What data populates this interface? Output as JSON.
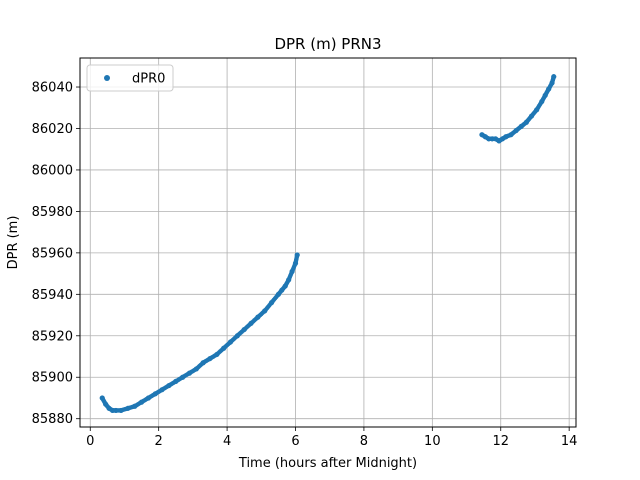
{
  "chart_data": {
    "type": "scatter",
    "title": "DPR (m) PRN3",
    "xlabel": "Time (hours after Midnight)",
    "ylabel": "DPR (m)",
    "xlim": [
      -0.3,
      14.2
    ],
    "ylim": [
      85876,
      86054
    ],
    "xticks": [
      0,
      2,
      4,
      6,
      8,
      10,
      12,
      14
    ],
    "yticks": [
      85880,
      85900,
      85920,
      85940,
      85960,
      85980,
      86000,
      86020,
      86040
    ],
    "grid": true,
    "legend_position": "top-left",
    "series": [
      {
        "name": "dPR0",
        "color": "#1f77b4",
        "segments": [
          {
            "x": [
              0.35,
              0.45,
              0.55,
              0.65,
              0.75,
              0.9,
              1.1,
              1.3,
              1.5,
              1.7,
              1.9,
              2.1,
              2.3,
              2.5,
              2.7,
              2.9,
              3.1,
              3.3,
              3.5,
              3.7,
              3.9,
              4.1,
              4.3,
              4.5,
              4.7,
              4.9,
              5.1,
              5.3,
              5.5,
              5.6,
              5.7,
              5.8,
              5.9,
              6.0,
              6.05
            ],
            "y": [
              85890,
              85887,
              85885,
              85884,
              85884,
              85884,
              85885,
              85886,
              85888,
              85890,
              85892,
              85894,
              85896,
              85898,
              85900,
              85902,
              85904,
              85907,
              85909,
              85911,
              85914,
              85917,
              85920,
              85923,
              85926,
              85929,
              85932,
              85936,
              85940,
              85942,
              85944,
              85947,
              85951,
              85955,
              85959
            ]
          },
          {
            "x": [
              11.45,
              11.55,
              11.65,
              11.75,
              11.85,
              11.95,
              12.05,
              12.15,
              12.3,
              12.45,
              12.6,
              12.75,
              12.9,
              13.05,
              13.2,
              13.3,
              13.4,
              13.5,
              13.55
            ],
            "y": [
              86017,
              86016,
              86015,
              86015,
              86015,
              86014,
              86015,
              86016,
              86017,
              86019,
              86021,
              86023,
              86026,
              86029,
              86033,
              86036,
              86039,
              86042,
              86045
            ]
          }
        ]
      }
    ]
  }
}
